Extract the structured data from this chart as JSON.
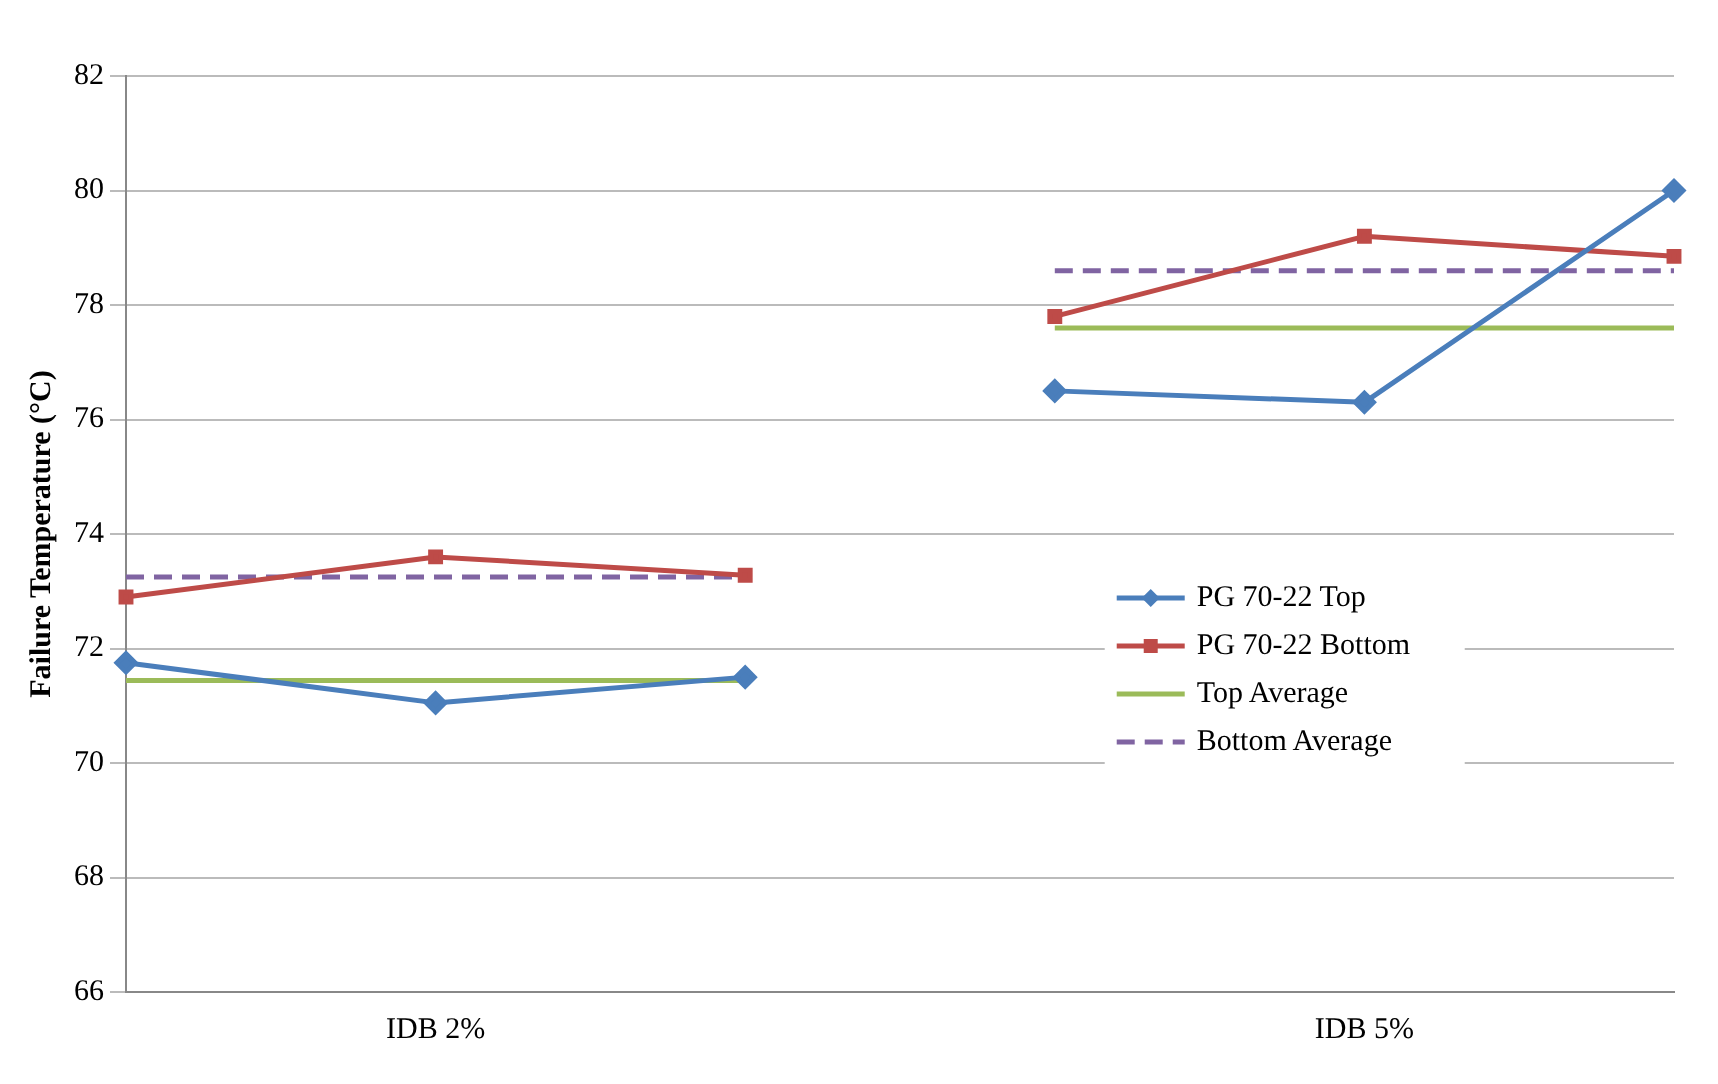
{
  "chart_data": {
    "type": "line",
    "ylabel": "Failure Temperature (°C)",
    "categories": [
      null,
      "IDB 2%",
      null,
      null,
      "IDB 5%",
      null
    ],
    "series": [
      {
        "name": "PG 70-22 Top",
        "color": "#4a7ebb",
        "marker": "diamond",
        "line_style": "solid",
        "values": [
          71.75,
          71.05,
          71.5,
          null,
          null,
          null
        ]
      },
      {
        "color": "#4a7ebb",
        "marker": "diamond",
        "line_style": "solid",
        "values": [
          null,
          null,
          null,
          76.5,
          76.3,
          80.0
        ]
      },
      {
        "name": "PG 70-22 Bottom",
        "color": "#be4b48",
        "marker": "square",
        "line_style": "solid",
        "values": [
          72.9,
          73.6,
          73.28,
          null,
          null,
          null
        ]
      },
      {
        "color": "#be4b48",
        "marker": "square",
        "line_style": "solid",
        "values": [
          null,
          null,
          null,
          77.8,
          79.2,
          78.85
        ]
      },
      {
        "name": "Top Average",
        "color": "#9bbb59",
        "marker": "none",
        "line_style": "solid",
        "values": [
          71.44,
          71.44,
          71.44,
          null,
          null,
          null
        ]
      },
      {
        "color": "#9bbb59",
        "marker": "none",
        "line_style": "solid",
        "values": [
          null,
          null,
          null,
          77.6,
          77.6,
          77.6
        ]
      },
      {
        "name": "Bottom Average",
        "color": "#8064a2",
        "marker": "none",
        "line_style": "dashed",
        "values": [
          73.25,
          73.25,
          73.25,
          null,
          null,
          null
        ]
      },
      {
        "color": "#8064a2",
        "marker": "none",
        "line_style": "dashed",
        "values": [
          null,
          null,
          null,
          78.6,
          78.6,
          78.6
        ]
      }
    ],
    "ylim": [
      66,
      82
    ],
    "yticks": [
      66,
      68,
      70,
      72,
      74,
      76,
      78,
      80,
      82
    ],
    "grid": "y",
    "legend": "right"
  }
}
